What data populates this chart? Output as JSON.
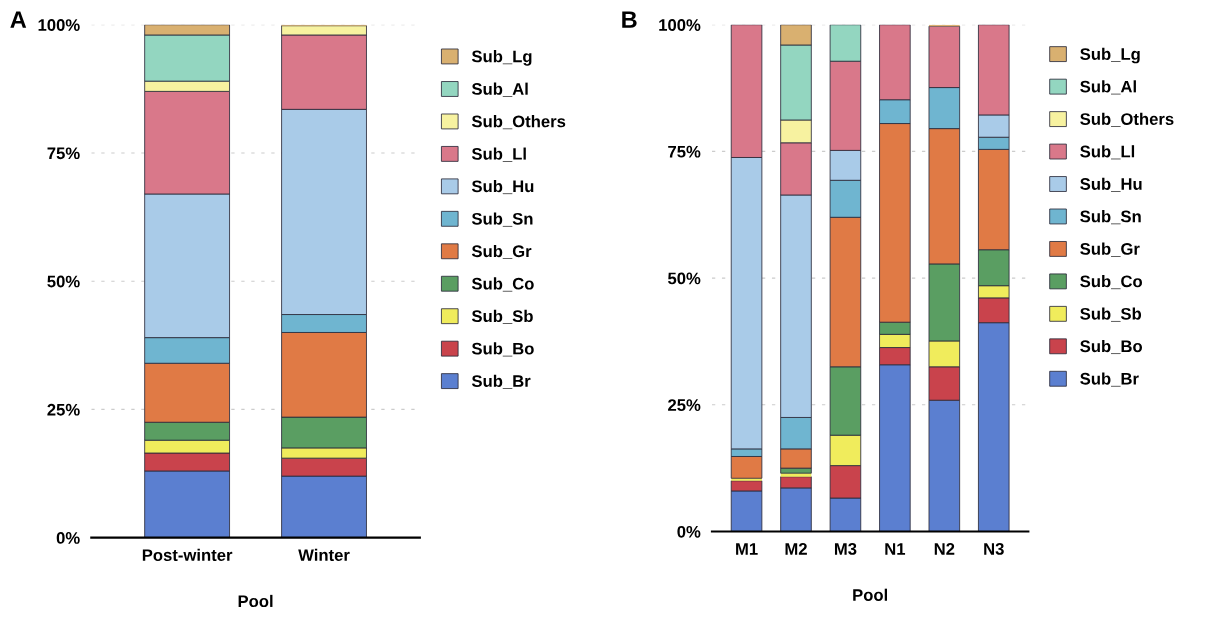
{
  "chart_data": [
    {
      "type": "bar",
      "title": "A",
      "xlabel": "Pool",
      "categories": [
        "Post-winter",
        "Winter"
      ],
      "stacked": true,
      "legend": "right",
      "grid": "y",
      "ylim": [
        0,
        100
      ],
      "yticks": [
        {
          "value": 0,
          "label": "0%"
        },
        {
          "value": 25,
          "label": "25%"
        },
        {
          "value": 50,
          "label": "50%"
        },
        {
          "value": 75,
          "label": "75%"
        },
        {
          "value": 100,
          "label": "100%"
        }
      ],
      "series": [
        {
          "name": "Sub_Br",
          "color": "#5b7fd0",
          "values": [
            13,
            12
          ]
        },
        {
          "name": "Sub_Bo",
          "color": "#c9434c",
          "values": [
            3.5,
            3.5
          ]
        },
        {
          "name": "Sub_Sb",
          "color": "#f0ec5c",
          "values": [
            2.5,
            2
          ]
        },
        {
          "name": "Sub_Co",
          "color": "#5a9e62",
          "values": [
            3.5,
            6
          ]
        },
        {
          "name": "Sub_Gr",
          "color": "#e07a45",
          "values": [
            11.5,
            16.5
          ]
        },
        {
          "name": "Sub_Sn",
          "color": "#6fb5d0",
          "values": [
            5,
            3.5
          ]
        },
        {
          "name": "Sub_Hu",
          "color": "#a9cbe8",
          "values": [
            28,
            40
          ]
        },
        {
          "name": "Sub_Ll",
          "color": "#d9788a",
          "values": [
            20,
            14.5
          ]
        },
        {
          "name": "Sub_Others",
          "color": "#f7f2a0",
          "values": [
            2,
            1.8
          ]
        },
        {
          "name": "Sub_Al",
          "color": "#93d6c0",
          "values": [
            9,
            0
          ]
        },
        {
          "name": "Sub_Lg",
          "color": "#d9b070",
          "values": [
            2,
            0.2
          ]
        }
      ]
    },
    {
      "type": "bar",
      "title": "B",
      "xlabel": "Pool",
      "categories": [
        "M1",
        "M2",
        "M3",
        "N1",
        "N2",
        "N3"
      ],
      "stacked": true,
      "legend": "right",
      "grid": "y",
      "ylim": [
        0,
        100
      ],
      "yticks": [
        {
          "value": 0,
          "label": "0%"
        },
        {
          "value": 25,
          "label": "25%"
        },
        {
          "value": 50,
          "label": "50%"
        },
        {
          "value": 75,
          "label": "75%"
        },
        {
          "value": 100,
          "label": "100%"
        }
      ],
      "series": [
        {
          "name": "Sub_Br",
          "color": "#5b7fd0",
          "values": [
            8,
            8.6,
            6.6,
            32.9,
            25.9,
            41.2
          ]
        },
        {
          "name": "Sub_Bo",
          "color": "#c9434c",
          "values": [
            2,
            2.2,
            6.4,
            3.4,
            6.6,
            4.9
          ]
        },
        {
          "name": "Sub_Sb",
          "color": "#f0ec5c",
          "values": [
            0.5,
            0.7,
            6,
            2.6,
            5.1,
            2.4
          ]
        },
        {
          "name": "Sub_Co",
          "color": "#5a9e62",
          "values": [
            0,
            1,
            13.5,
            2.4,
            15.2,
            7.1
          ]
        },
        {
          "name": "Sub_Gr",
          "color": "#e07a45",
          "values": [
            4.3,
            3.8,
            29.5,
            39.2,
            26.7,
            19.8
          ]
        },
        {
          "name": "Sub_Sn",
          "color": "#6fb5d0",
          "values": [
            1.5,
            6.2,
            7.3,
            4.7,
            8.1,
            2.4
          ]
        },
        {
          "name": "Sub_Hu",
          "color": "#a9cbe8",
          "values": [
            57.5,
            43.9,
            5.9,
            0,
            0,
            4.4
          ]
        },
        {
          "name": "Sub_Ll",
          "color": "#d9788a",
          "values": [
            26.2,
            10.3,
            17.6,
            14.8,
            12.1,
            17.8
          ]
        },
        {
          "name": "Sub_Others",
          "color": "#f7f2a0",
          "values": [
            0,
            4.5,
            0,
            0,
            0,
            0
          ]
        },
        {
          "name": "Sub_Al",
          "color": "#93d6c0",
          "values": [
            0,
            14.8,
            7.2,
            0,
            0,
            0
          ]
        },
        {
          "name": "Sub_Lg",
          "color": "#d9b070",
          "values": [
            0,
            4,
            0,
            0,
            0.3,
            0
          ]
        }
      ]
    }
  ]
}
